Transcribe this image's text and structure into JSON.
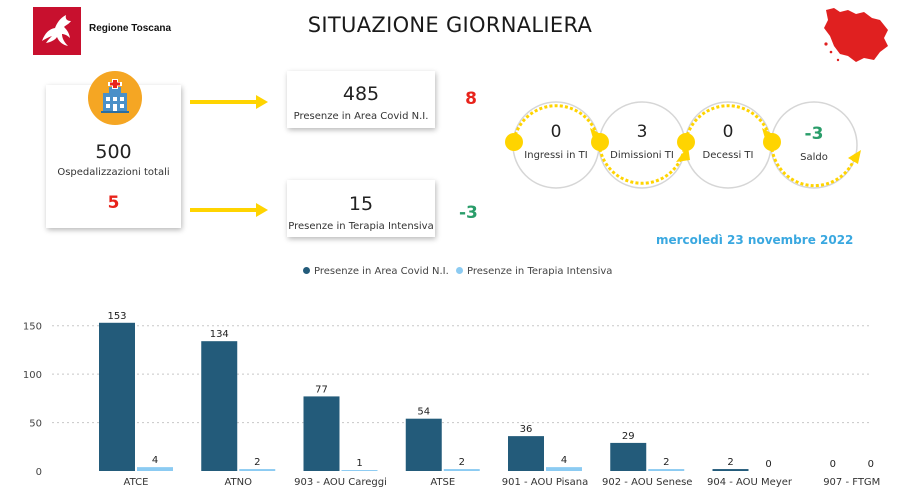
{
  "header": {
    "brand": "Regione Toscana",
    "title": "SITUAZIONE GIORNALIERA",
    "logo_icon": "pegasus-logo-icon",
    "map_icon": "tuscany-map-icon"
  },
  "summary": {
    "total_value": "500",
    "total_label": "Ospedalizzazioni totali",
    "total_change": "5",
    "area_value": "485",
    "area_label": "Presenze in Area Covid N.I.",
    "area_change": "8",
    "ti_value": "15",
    "ti_label": "Presenze in Terapia Intensiva",
    "ti_change": "-3"
  },
  "flow": [
    {
      "value": "0",
      "label": "Ingressi in TI"
    },
    {
      "value": "3",
      "label": "Dimissioni TI"
    },
    {
      "value": "0",
      "label": "Decessi TI"
    },
    {
      "value": "-3",
      "label": "Saldo"
    }
  ],
  "date": "mercoledì 23 novembre 2022",
  "colors": {
    "area": "#235b7a",
    "ti": "#8ccbf2",
    "arrow": "#ffd400",
    "red": "#e8231b",
    "green": "#2a9d6a",
    "date": "#3aa8e0"
  },
  "chart_data": {
    "type": "bar",
    "categories": [
      "ATCE",
      "ATNO",
      "903 - AOU Careggi",
      "ATSE",
      "901 - AOU Pisana",
      "902 - AOU Senese",
      "904 - AOU Meyer",
      "907 - FTGM"
    ],
    "series": [
      {
        "name": "Presenze in Area Covid N.I.",
        "values": [
          153,
          134,
          77,
          54,
          36,
          29,
          2,
          0
        ]
      },
      {
        "name": "Presenze in Terapia Intensiva",
        "values": [
          4,
          2,
          1,
          2,
          4,
          2,
          0,
          0
        ]
      }
    ],
    "yticks": [
      0,
      50,
      100,
      150
    ],
    "ylim": [
      0,
      160
    ],
    "grid": true,
    "legend_position": "top"
  }
}
